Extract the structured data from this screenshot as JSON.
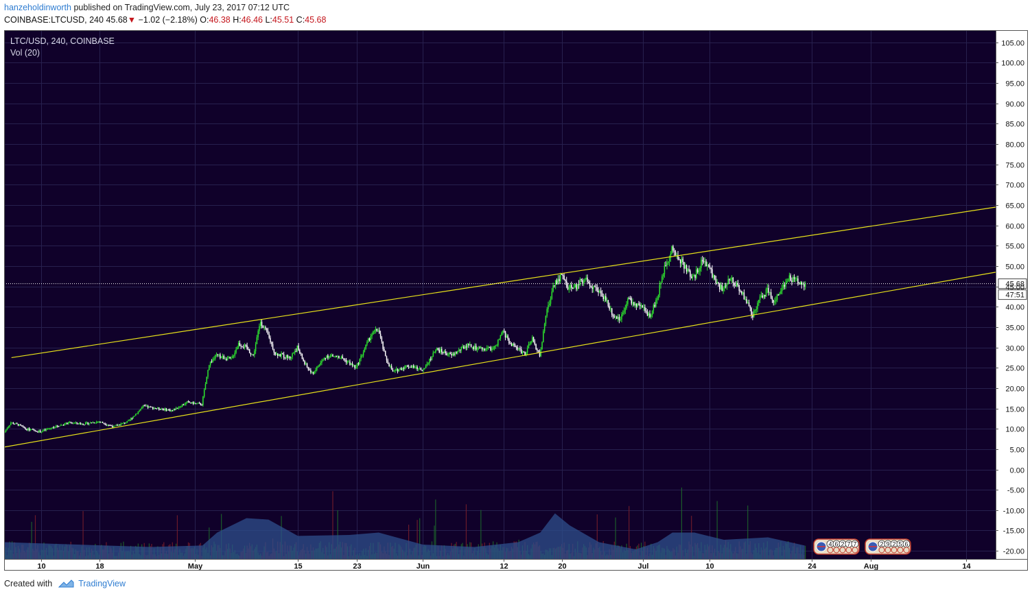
{
  "header": {
    "user": "hanzeholdinworth",
    "published": "published on TradingView.com, July 23, 2017 07:12 UTC",
    "symbol": "COINBASE:LTCUSD, 240",
    "last": "45.68",
    "down_arrow": "▼",
    "change": "−1.02 (−2.18%)",
    "open_label": "O:",
    "open": "46.38",
    "high_label": "H:",
    "high": "46.46",
    "low_label": "L:",
    "low": "45.51",
    "close_label": "C:",
    "close": "45.68"
  },
  "legend": {
    "main": "LTC/USD, 240, COINBASE",
    "volume": "Vol (20)"
  },
  "price_tags": {
    "last_price": "45.68",
    "countdown": "47:51"
  },
  "event_badges": [
    {
      "digits": [
        "4",
        "6",
        "2",
        "7",
        "7"
      ]
    },
    {
      "digits": [
        "2",
        "9",
        "2",
        "5",
        "6"
      ]
    }
  ],
  "footer": {
    "created_with": "Created with",
    "brand": "TradingView"
  },
  "colors": {
    "background": "#10012a",
    "grid": "#27204e",
    "up": "#2ee82e",
    "down": "#ffffff",
    "channel": "#e8e21a",
    "volume_ma": "#2d4f8c",
    "axis_text": "#111111",
    "axis_bg": "#ffffff"
  },
  "chart_data": {
    "type": "candlestick",
    "symbol": "LTC/USD",
    "interval": "240",
    "exchange": "COINBASE",
    "x_range": [
      "2017-04-05",
      "2017-08-18"
    ],
    "ylim": [
      -22,
      108
    ],
    "y_ticks": [
      "105.00",
      "100.00",
      "95.00",
      "90.00",
      "85.00",
      "80.00",
      "75.00",
      "70.00",
      "65.00",
      "60.00",
      "55.00",
      "50.00",
      "45.00",
      "40.00",
      "35.00",
      "30.00",
      "25.00",
      "20.00",
      "15.00",
      "10.00",
      "5.00",
      "0.00",
      "-5.00",
      "-10.00",
      "-15.00",
      "-20.00"
    ],
    "x_ticks": [
      {
        "label": "10",
        "date": "2017-04-10"
      },
      {
        "label": "18",
        "date": "2017-04-18"
      },
      {
        "label": "May",
        "date": "2017-05-01"
      },
      {
        "label": "15",
        "date": "2017-05-15"
      },
      {
        "label": "23",
        "date": "2017-05-23"
      },
      {
        "label": "Jun",
        "date": "2017-06-01"
      },
      {
        "label": "12",
        "date": "2017-06-12"
      },
      {
        "label": "20",
        "date": "2017-06-20"
      },
      {
        "label": "Jul",
        "date": "2017-07-01"
      },
      {
        "label": "10",
        "date": "2017-07-10"
      },
      {
        "label": "24",
        "date": "2017-07-24"
      },
      {
        "label": "Aug",
        "date": "2017-08-01"
      },
      {
        "label": "14",
        "date": "2017-08-14"
      }
    ],
    "price_path": [
      [
        "2017-04-05",
        9.0
      ],
      [
        "2017-04-06",
        11.5
      ],
      [
        "2017-04-07",
        11.0
      ],
      [
        "2017-04-08",
        10.0
      ],
      [
        "2017-04-10",
        9.3
      ],
      [
        "2017-04-12",
        10.5
      ],
      [
        "2017-04-14",
        11.5
      ],
      [
        "2017-04-16",
        11.2
      ],
      [
        "2017-04-18",
        11.8
      ],
      [
        "2017-04-20",
        10.5
      ],
      [
        "2017-04-22",
        11.8
      ],
      [
        "2017-04-24",
        15.5
      ],
      [
        "2017-04-26",
        15.0
      ],
      [
        "2017-04-28",
        14.5
      ],
      [
        "2017-04-30",
        16.5
      ],
      [
        "2017-05-02",
        16.0
      ],
      [
        "2017-05-03",
        26.0
      ],
      [
        "2017-05-04",
        28.0
      ],
      [
        "2017-05-06",
        27.0
      ],
      [
        "2017-05-07",
        31.0
      ],
      [
        "2017-05-08",
        30.0
      ],
      [
        "2017-05-09",
        28.0
      ],
      [
        "2017-05-10",
        36.5
      ],
      [
        "2017-05-11",
        33.0
      ],
      [
        "2017-05-12",
        28.5
      ],
      [
        "2017-05-14",
        27.5
      ],
      [
        "2017-05-15",
        30.0
      ],
      [
        "2017-05-16",
        26.0
      ],
      [
        "2017-05-17",
        23.5
      ],
      [
        "2017-05-19",
        28.0
      ],
      [
        "2017-05-21",
        27.5
      ],
      [
        "2017-05-23",
        25.0
      ],
      [
        "2017-05-25",
        33.0
      ],
      [
        "2017-05-26",
        34.5
      ],
      [
        "2017-05-27",
        27.5
      ],
      [
        "2017-05-28",
        24.0
      ],
      [
        "2017-05-30",
        25.5
      ],
      [
        "2017-06-01",
        24.5
      ],
      [
        "2017-06-03",
        29.5
      ],
      [
        "2017-06-05",
        28.0
      ],
      [
        "2017-06-07",
        30.5
      ],
      [
        "2017-06-09",
        29.5
      ],
      [
        "2017-06-11",
        30.0
      ],
      [
        "2017-06-12",
        34.0
      ],
      [
        "2017-06-13",
        31.0
      ],
      [
        "2017-06-15",
        28.5
      ],
      [
        "2017-06-16",
        32.0
      ],
      [
        "2017-06-17",
        28.0
      ],
      [
        "2017-06-18",
        39.0
      ],
      [
        "2017-06-19",
        46.0
      ],
      [
        "2017-06-20",
        47.5
      ],
      [
        "2017-06-21",
        44.5
      ],
      [
        "2017-06-22",
        45.0
      ],
      [
        "2017-06-23",
        47.0
      ],
      [
        "2017-06-24",
        45.5
      ],
      [
        "2017-06-26",
        42.0
      ],
      [
        "2017-06-27",
        38.0
      ],
      [
        "2017-06-28",
        37.0
      ],
      [
        "2017-06-29",
        42.0
      ],
      [
        "2017-06-30",
        40.5
      ],
      [
        "2017-07-01",
        39.5
      ],
      [
        "2017-07-02",
        38.0
      ],
      [
        "2017-07-03",
        42.0
      ],
      [
        "2017-07-04",
        50.0
      ],
      [
        "2017-07-05",
        54.0
      ],
      [
        "2017-07-06",
        52.0
      ],
      [
        "2017-07-07",
        49.0
      ],
      [
        "2017-07-08",
        47.0
      ],
      [
        "2017-07-09",
        51.0
      ],
      [
        "2017-07-10",
        50.0
      ],
      [
        "2017-07-11",
        46.0
      ],
      [
        "2017-07-12",
        44.0
      ],
      [
        "2017-07-13",
        47.0
      ],
      [
        "2017-07-14",
        45.0
      ],
      [
        "2017-07-15",
        42.0
      ],
      [
        "2017-07-16",
        38.0
      ],
      [
        "2017-07-17",
        42.0
      ],
      [
        "2017-07-18",
        44.0
      ],
      [
        "2017-07-19",
        41.0
      ],
      [
        "2017-07-20",
        45.0
      ],
      [
        "2017-07-21",
        47.0
      ],
      [
        "2017-07-22",
        46.5
      ],
      [
        "2017-07-23",
        45.68
      ]
    ],
    "channel_lines": [
      {
        "start": [
          "2017-04-06",
          27.5
        ],
        "end": [
          "2017-08-18",
          64.5
        ]
      },
      {
        "start": [
          "2017-04-05",
          5.5
        ],
        "end": [
          "2017-08-18",
          48.5
        ]
      }
    ],
    "last_price": 45.68,
    "volume_axis_bottom": -22,
    "volume_ma": [
      [
        "2017-04-05",
        0.35
      ],
      [
        "2017-04-15",
        0.3
      ],
      [
        "2017-04-25",
        0.25
      ],
      [
        "2017-05-02",
        0.28
      ],
      [
        "2017-05-04",
        0.55
      ],
      [
        "2017-05-08",
        0.85
      ],
      [
        "2017-05-11",
        0.82
      ],
      [
        "2017-05-15",
        0.48
      ],
      [
        "2017-05-22",
        0.5
      ],
      [
        "2017-05-26",
        0.55
      ],
      [
        "2017-06-01",
        0.3
      ],
      [
        "2017-06-08",
        0.25
      ],
      [
        "2017-06-14",
        0.35
      ],
      [
        "2017-06-17",
        0.55
      ],
      [
        "2017-06-19",
        0.95
      ],
      [
        "2017-06-21",
        0.7
      ],
      [
        "2017-06-25",
        0.35
      ],
      [
        "2017-06-30",
        0.2
      ],
      [
        "2017-07-03",
        0.35
      ],
      [
        "2017-07-05",
        0.55
      ],
      [
        "2017-07-08",
        0.55
      ],
      [
        "2017-07-12",
        0.4
      ],
      [
        "2017-07-18",
        0.45
      ],
      [
        "2017-07-23",
        0.28
      ]
    ]
  }
}
